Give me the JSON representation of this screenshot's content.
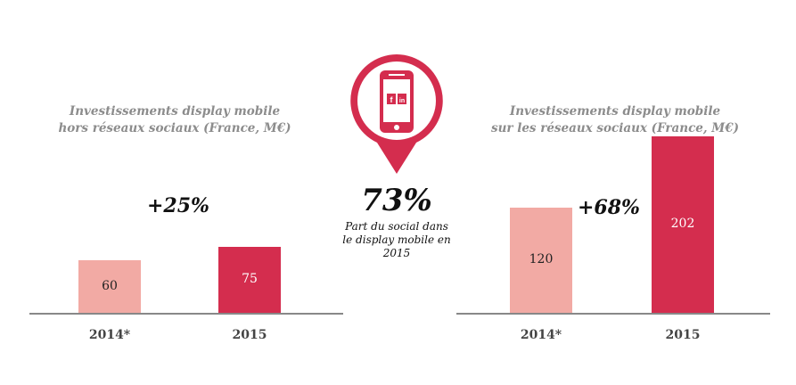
{
  "colors": {
    "light": "#f2aaa4",
    "dark": "#d42d4e",
    "axis": "#8a8a8a"
  },
  "icons": [
    "smartphone-icon",
    "facebook-icon",
    "linkedin-icon"
  ],
  "center": {
    "share": "73%",
    "caption_lines": [
      "Part du social dans",
      "le display mobile en",
      "2015"
    ],
    "fb_letter": "f",
    "in_letter": "in"
  },
  "chart_data": [
    {
      "type": "bar",
      "title_lines": [
        "Investissements display mobile",
        "hors réseaux sociaux (France, M€)"
      ],
      "categories": [
        "2014*",
        "2015"
      ],
      "values": [
        60,
        75
      ],
      "value_labels": [
        "60",
        "75"
      ],
      "growth": "+25%",
      "ylim": [
        0,
        220
      ]
    },
    {
      "type": "bar",
      "title_lines": [
        "Investissements display mobile",
        "sur les réseaux sociaux (France, M€)"
      ],
      "categories": [
        "2014*",
        "2015"
      ],
      "values": [
        120,
        202
      ],
      "value_labels": [
        "120",
        "202"
      ],
      "growth": "+68%",
      "ylim": [
        0,
        220
      ]
    }
  ]
}
